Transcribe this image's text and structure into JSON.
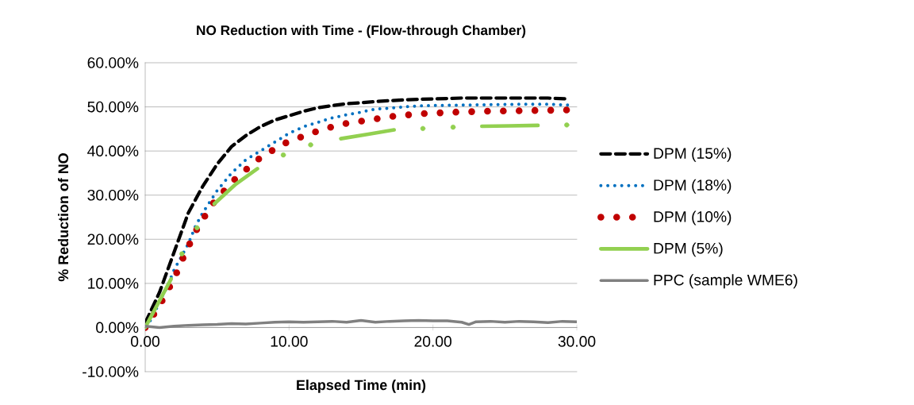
{
  "chart_data": {
    "type": "line",
    "title": "NO Reduction with Time - (Flow-through Chamber)",
    "xlabel": "Elapsed Time (min)",
    "ylabel": "% Reduction of NO",
    "xlim": [
      0,
      30
    ],
    "xticks": [
      {
        "value": 0,
        "label": "0.00"
      },
      {
        "value": 10,
        "label": "10.00"
      },
      {
        "value": 20,
        "label": "20.00"
      },
      {
        "value": 30,
        "label": "30.00"
      }
    ],
    "ylim": [
      -10,
      60
    ],
    "yticks": [
      {
        "value": -10,
        "label": "-10.00%"
      },
      {
        "value": 0,
        "label": "0.00%"
      },
      {
        "value": 10,
        "label": "10.00%"
      },
      {
        "value": 20,
        "label": "20.00%"
      },
      {
        "value": 30,
        "label": "30.00%"
      },
      {
        "value": 40,
        "label": "40.00%"
      },
      {
        "value": 50,
        "label": "50.00%"
      },
      {
        "value": 60,
        "label": "60.00%"
      }
    ],
    "grid": "y",
    "legend": "right",
    "series": [
      {
        "name": "DPM (15%)",
        "color": "#000000",
        "line_style": "dashed",
        "x": [
          0,
          1,
          2,
          3,
          4,
          5,
          6,
          7,
          8,
          9,
          10,
          11,
          12,
          13,
          14,
          16,
          18,
          20,
          22,
          24,
          26,
          28,
          29.5
        ],
        "values": [
          1,
          8,
          17,
          26,
          32,
          37,
          41,
          43.5,
          45.5,
          47,
          48,
          49,
          49.8,
          50.3,
          50.7,
          51.2,
          51.6,
          51.8,
          52,
          52,
          52,
          52,
          51.8
        ]
      },
      {
        "name": "DPM (18%)",
        "color": "#0070c0",
        "line_style": "dotted",
        "x": [
          0,
          0.5,
          1,
          1.5,
          2,
          2.5,
          3,
          3.5,
          4,
          4.5,
          5,
          5.5,
          6,
          7,
          8,
          9,
          10,
          11,
          12,
          13,
          14,
          15,
          16,
          17,
          18,
          19,
          20,
          22,
          24,
          26,
          28,
          29.5
        ],
        "values": [
          0.5,
          2,
          6,
          9,
          13,
          16,
          19,
          23,
          26,
          28.5,
          31,
          33,
          35,
          38,
          40,
          42,
          44,
          45.5,
          46.5,
          47.5,
          48.2,
          48.8,
          49.5,
          49.7,
          50,
          50.2,
          50.3,
          50.4,
          50.5,
          50.6,
          50.6,
          50.4
        ]
      },
      {
        "name": "DPM (10%)",
        "color": "#c00000",
        "line_style": "dotted",
        "x": [
          0,
          1,
          2,
          2.8,
          3.7,
          4.8,
          6.2,
          7.8,
          9.5,
          11.5,
          13.5,
          15.5,
          17.5,
          19.5,
          21.5,
          23.5,
          25.5,
          27.5,
          29.5
        ],
        "values": [
          0,
          5,
          11,
          17,
          23,
          28.5,
          33.5,
          38,
          41.5,
          44,
          46,
          47,
          48,
          48.5,
          48.8,
          49,
          49.1,
          49.2,
          49.3
        ]
      },
      {
        "name": "DPM (5%)",
        "color": "#92d050",
        "line_style": "solid",
        "x": [
          0,
          0.9,
          1.8,
          2.2,
          2.55,
          3.1,
          3.6,
          4.0,
          4.8,
          6.3,
          7.8,
          8.5,
          9.6,
          10.5,
          11.5,
          12.5,
          13.6,
          15.5,
          17.3,
          18.3,
          19.3,
          20.3,
          21.4,
          22.4,
          23.4,
          25.3,
          27.3,
          28.3,
          29.3
        ],
        "values": [
          0,
          5.5,
          11,
          null,
          16.7,
          null,
          22.6,
          null,
          28,
          32.5,
          36,
          null,
          39.1,
          null,
          41.4,
          null,
          42.8,
          43.8,
          44.8,
          null,
          45.1,
          null,
          45.4,
          null,
          45.6,
          45.7,
          45.8,
          null,
          45.9
        ]
      },
      {
        "name": "PPC (sample WME6)",
        "color": "#808080",
        "line_style": "solid",
        "x": [
          0,
          1,
          2,
          3,
          4,
          5,
          6,
          7,
          8,
          9,
          10,
          11,
          12,
          13,
          14,
          15,
          16,
          17,
          18,
          19,
          20,
          21,
          22,
          22.5,
          23,
          24,
          25,
          26,
          27,
          28,
          29,
          30
        ],
        "values": [
          0.3,
          0,
          0.3,
          0.5,
          0.6,
          0.7,
          0.9,
          0.8,
          1.0,
          1.2,
          1.3,
          1.2,
          1.3,
          1.4,
          1.2,
          1.6,
          1.2,
          1.4,
          1.5,
          1.6,
          1.5,
          1.5,
          1.2,
          0.7,
          1.3,
          1.4,
          1.2,
          1.4,
          1.3,
          1.1,
          1.4,
          1.3
        ]
      }
    ]
  }
}
